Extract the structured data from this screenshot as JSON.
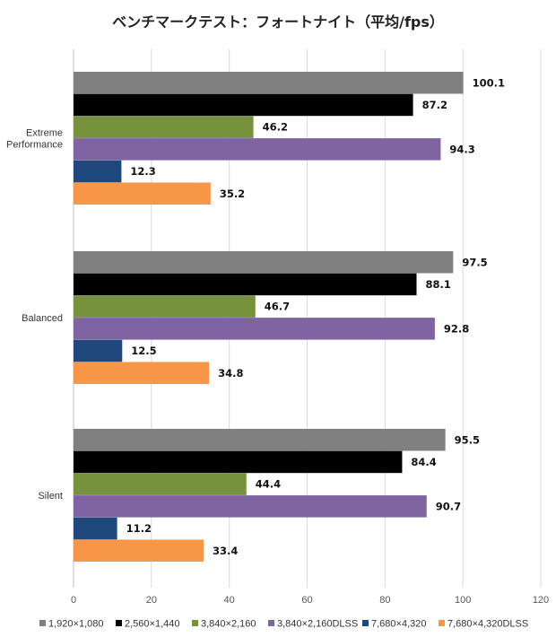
{
  "chart_data": {
    "type": "bar",
    "orientation": "horizontal",
    "title": "ベンチマークテスト：フォートナイト（平均/fps）",
    "categories": [
      [
        "Extreme",
        "Performance"
      ],
      [
        "Balanced"
      ],
      [
        "Silent"
      ]
    ],
    "series": [
      {
        "name": "1,920×1,080",
        "color": "#808080",
        "values": [
          100.1,
          97.5,
          95.5
        ]
      },
      {
        "name": "2,560×1,440",
        "color": "#000000",
        "values": [
          87.2,
          88.1,
          84.4
        ]
      },
      {
        "name": "3,840×2,160",
        "color": "#76923c",
        "values": [
          46.2,
          46.7,
          44.4
        ]
      },
      {
        "name": "3,840×2,160DLSS",
        "color": "#8064a2",
        "values": [
          94.3,
          92.8,
          90.7
        ]
      },
      {
        "name": "7,680×4,320",
        "color": "#1f497d",
        "values": [
          12.3,
          12.5,
          11.2
        ]
      },
      {
        "name": "7,680×4,320DLSS",
        "color": "#f79646",
        "values": [
          35.2,
          34.8,
          33.4
        ]
      }
    ],
    "xlim": [
      0,
      120
    ],
    "xticks": [
      0,
      20,
      40,
      60,
      80,
      100,
      120
    ],
    "grid": true,
    "legend": "bottom",
    "xlabel": "",
    "ylabel": ""
  }
}
